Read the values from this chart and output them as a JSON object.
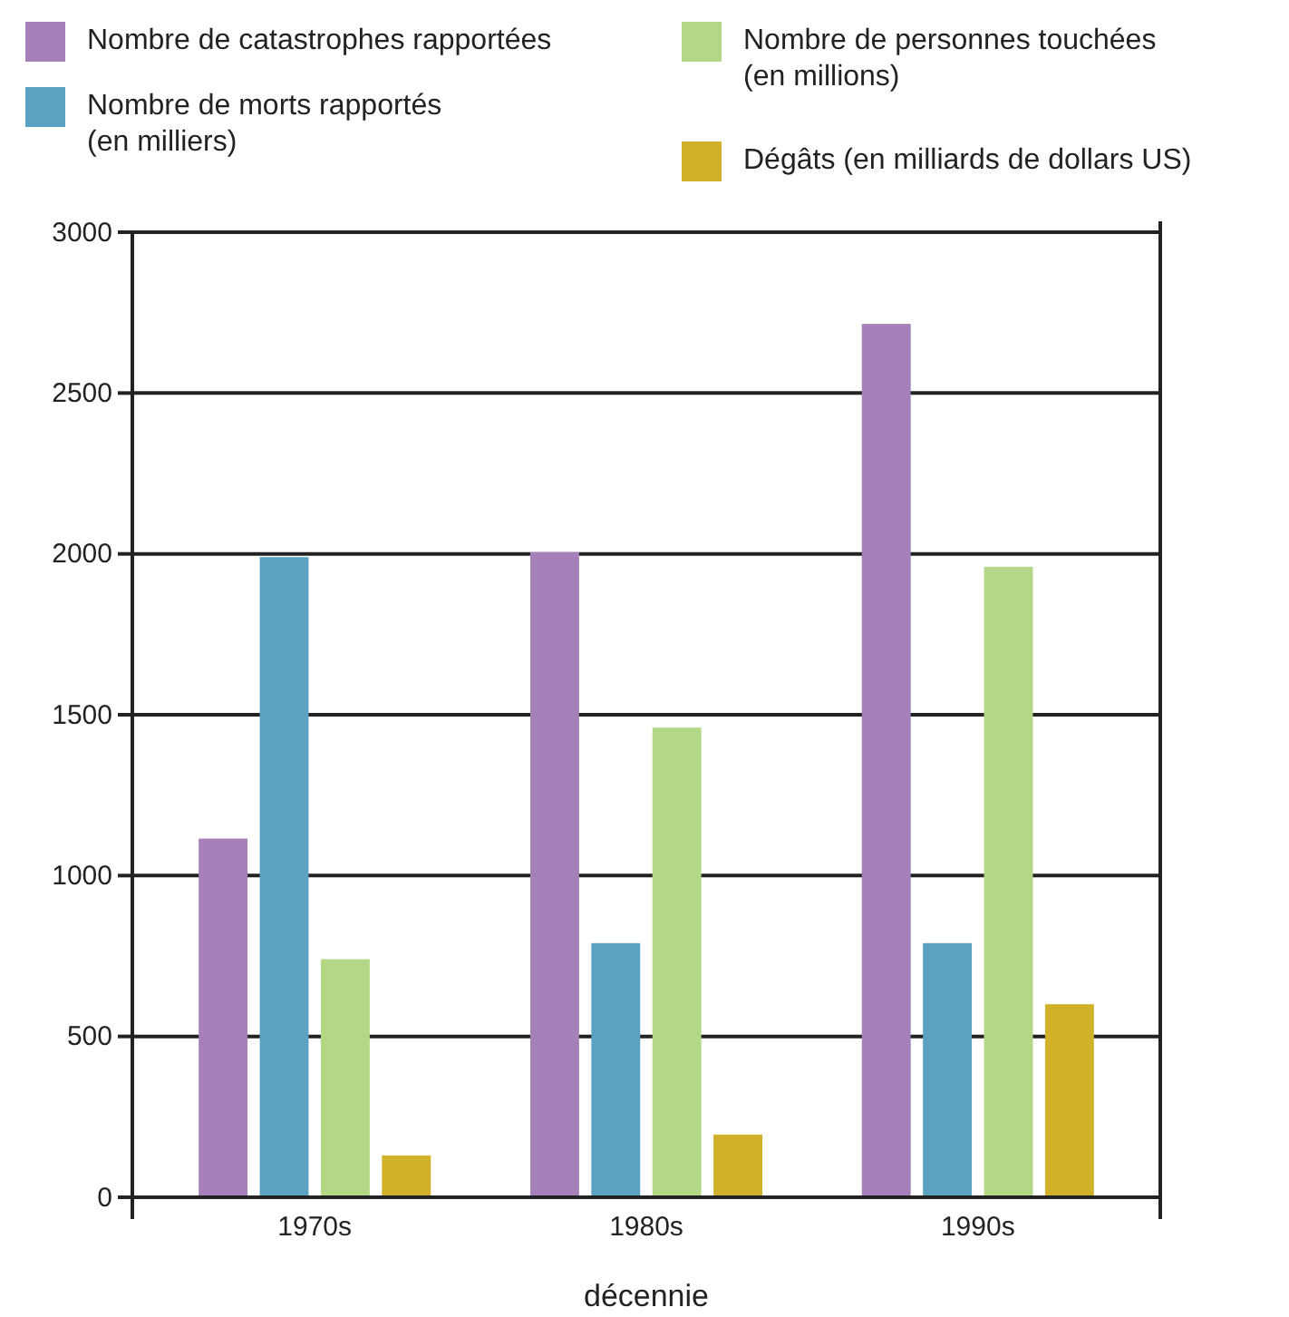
{
  "chart_data": {
    "type": "bar",
    "xlabel": "décennie",
    "categories": [
      "1970s",
      "1980s",
      "1990s"
    ],
    "series": [
      {
        "name": "Nombre de catastrophes rapportées",
        "color": "#a680b9",
        "values": [
          1115,
          2005,
          2715
        ]
      },
      {
        "name": "Nombre de morts rapportés\n(en milliers)",
        "color": "#5ba2c2",
        "values": [
          1990,
          790,
          790
        ]
      },
      {
        "name": "Nombre de personnes touchées\n(en millions)",
        "color": "#b4d787",
        "values": [
          740,
          1460,
          1960
        ]
      },
      {
        "name": "Dégâts (en milliards de dollars US)",
        "color": "#d2b12a",
        "values": [
          130,
          195,
          600
        ]
      }
    ],
    "ylim": [
      0,
      3000
    ],
    "yticks": [
      0,
      500,
      1000,
      1500,
      2000,
      2500,
      3000
    ],
    "grid": "y",
    "legend": "top"
  }
}
